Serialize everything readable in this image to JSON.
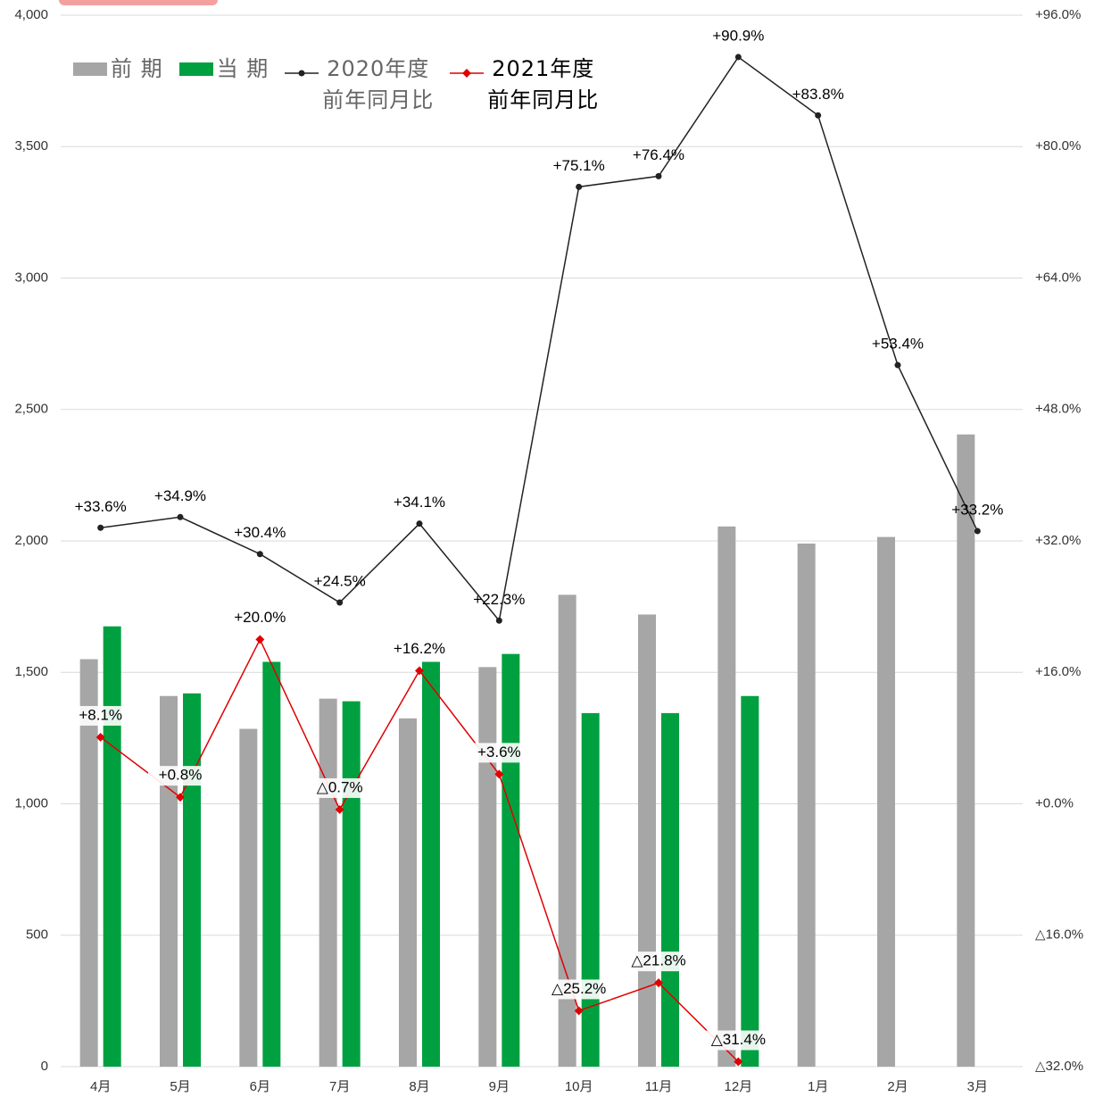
{
  "chart_data": {
    "type": "bar-line",
    "categories": [
      "4月",
      "5月",
      "6月",
      "7月",
      "8月",
      "9月",
      "10月",
      "11月",
      "12月",
      "1月",
      "2月",
      "3月"
    ],
    "series": [
      {
        "name": "前 期",
        "type": "bar",
        "color": "#a6a6a6",
        "values": [
          1550,
          1410,
          1285,
          1400,
          1325,
          1520,
          1795,
          1720,
          2055,
          1990,
          2015,
          2405
        ]
      },
      {
        "name": "当 期",
        "type": "bar",
        "color": "#00a040",
        "values": [
          1675,
          1420,
          1540,
          1390,
          1540,
          1570,
          1345,
          1345,
          1410,
          null,
          null,
          null
        ]
      },
      {
        "name": "2020年度\n前年同月比",
        "type": "line",
        "axis": "y2",
        "color": "#222222",
        "legend_text_color": "#666666",
        "values": [
          33.6,
          34.9,
          30.4,
          24.5,
          34.1,
          22.3,
          75.1,
          76.4,
          90.9,
          83.8,
          53.4,
          33.2
        ],
        "value_labels": [
          "+33.6%",
          "+34.9%",
          "+30.4%",
          "+24.5%",
          "+34.1%",
          "+22.3%",
          "+75.1%",
          "+76.4%",
          "+90.9%",
          "+83.8%",
          "+53.4%",
          "+33.2%"
        ]
      },
      {
        "name": "2021年度\n前年同月比",
        "type": "line",
        "axis": "y2",
        "color": "#e00000",
        "legend_text_color": "#000000",
        "values": [
          8.1,
          0.8,
          20.0,
          -0.7,
          16.2,
          3.6,
          -25.2,
          -21.8,
          -31.4,
          null,
          null,
          null
        ],
        "value_labels": [
          "+8.1%",
          "+0.8%",
          "+20.0%",
          "△0.7%",
          "+16.2%",
          "+3.6%",
          "△25.2%",
          "△21.8%",
          "△31.4%",
          null,
          null,
          null
        ]
      }
    ],
    "ylim": [
      0,
      4000
    ],
    "yticks": [
      0,
      500,
      {
        "value": 1000,
        "label": "1,000"
      },
      {
        "value": 1500,
        "label": "1,500"
      },
      {
        "value": 2000,
        "label": "2,000"
      },
      {
        "value": 2500,
        "label": "2,500"
      },
      {
        "value": 3000,
        "label": "3,000"
      },
      {
        "value": 3500,
        "label": "3,500"
      },
      {
        "value": 4000,
        "label": "4,000"
      }
    ],
    "y2lim": [
      -32,
      96
    ],
    "y2ticks": [
      {
        "value": -32,
        "label": "△32.0%"
      },
      {
        "value": -16,
        "label": "△16.0%"
      },
      {
        "value": 0,
        "label": "+0.0%"
      },
      {
        "value": 16,
        "label": "+16.0%"
      },
      {
        "value": 32,
        "label": "+32.0%"
      },
      {
        "value": 48,
        "label": "+48.0%"
      },
      {
        "value": 64,
        "label": "+64.0%"
      },
      {
        "value": 80,
        "label": "+80.0%"
      },
      {
        "value": 96,
        "label": "+96.0%"
      }
    ],
    "grid": true
  }
}
